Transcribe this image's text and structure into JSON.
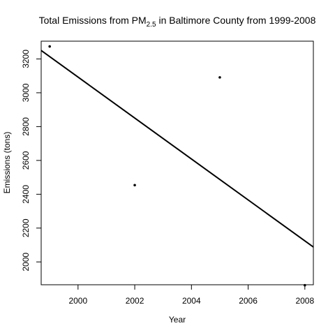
{
  "chart_data": {
    "type": "scatter",
    "title": {
      "before": "Total Emissions from PM",
      "subscript": "2.5",
      "after": " in Baltimore County from 1999-2008"
    },
    "xlabel": "Year",
    "ylabel": "Emissions (tons)",
    "xlim": [
      1998.7,
      2008.3
    ],
    "ylim": [
      1865,
      3305
    ],
    "xticks": [
      2000,
      2002,
      2004,
      2006,
      2008
    ],
    "yticks": [
      2000,
      2200,
      2400,
      2600,
      2800,
      3000,
      3200
    ],
    "points": [
      {
        "x": 1999,
        "y": 3274
      },
      {
        "x": 2002,
        "y": 2454
      },
      {
        "x": 2005,
        "y": 3091
      },
      {
        "x": 2008,
        "y": 1862
      }
    ],
    "fit_line": {
      "type": "linear regression",
      "from": [
        1998.7,
        3250
      ],
      "to": [
        2008.3,
        2088
      ]
    },
    "grid": false,
    "colors": {
      "points": "#000000",
      "line": "#000000",
      "box": "#000000"
    }
  }
}
